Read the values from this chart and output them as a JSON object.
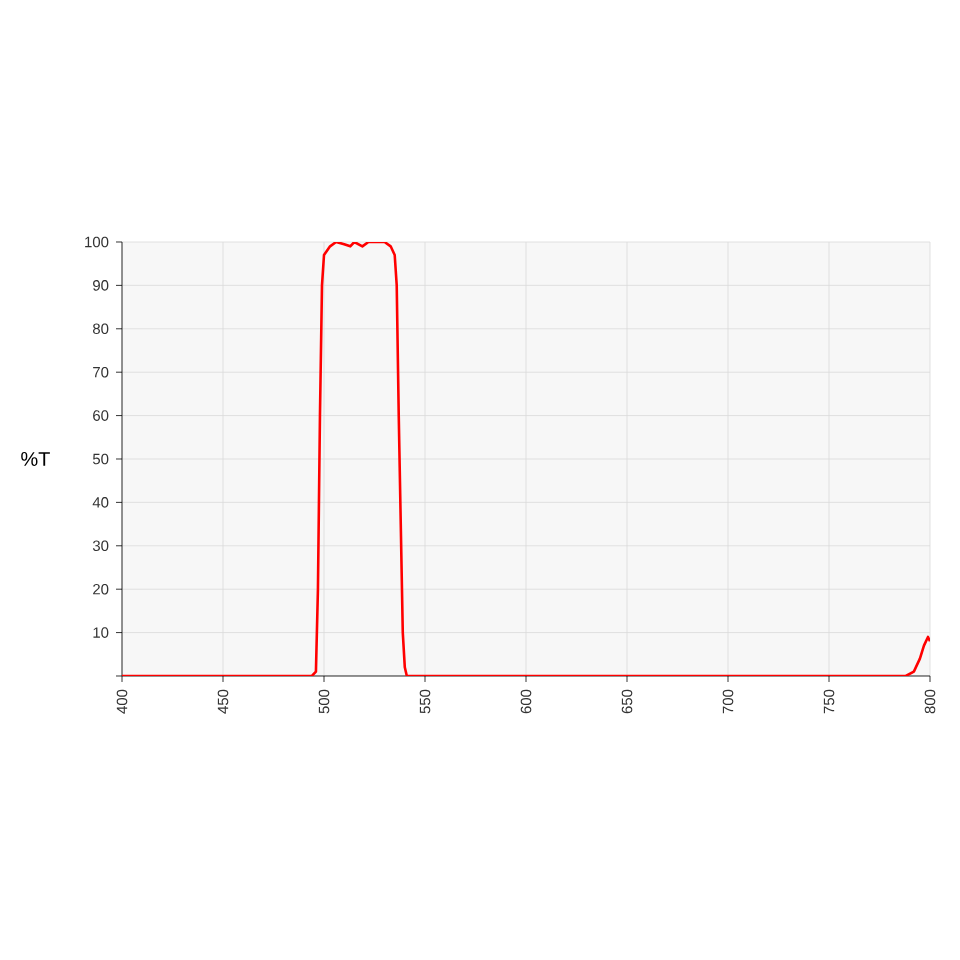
{
  "chart_data": {
    "type": "line",
    "ylabel": "%T",
    "xlim": [
      400,
      800
    ],
    "ylim": [
      0,
      100
    ],
    "xticks": [
      400,
      450,
      500,
      550,
      600,
      650,
      700,
      750,
      800
    ],
    "yticks": [
      {
        "value": 0,
        "label": null
      },
      10,
      20,
      30,
      40,
      50,
      60,
      70,
      80,
      90,
      100
    ],
    "grid": true,
    "marker": "none",
    "line_style": "solid",
    "series": [
      {
        "color": "#ff0000",
        "x": [
          400,
          494,
          496,
          497,
          498,
          499,
          500,
          503,
          506,
          510,
          513,
          515,
          519,
          522,
          530,
          533,
          535,
          536,
          537,
          538,
          539,
          540,
          541,
          788,
          792,
          795,
          797,
          799,
          800
        ],
        "values": [
          0,
          0,
          1,
          20,
          60,
          90,
          97,
          99,
          100,
          99.5,
          99,
          100,
          99,
          100,
          100,
          99,
          97,
          90,
          60,
          35,
          10,
          2,
          0,
          0,
          1,
          4,
          7,
          9,
          8
        ]
      }
    ]
  }
}
